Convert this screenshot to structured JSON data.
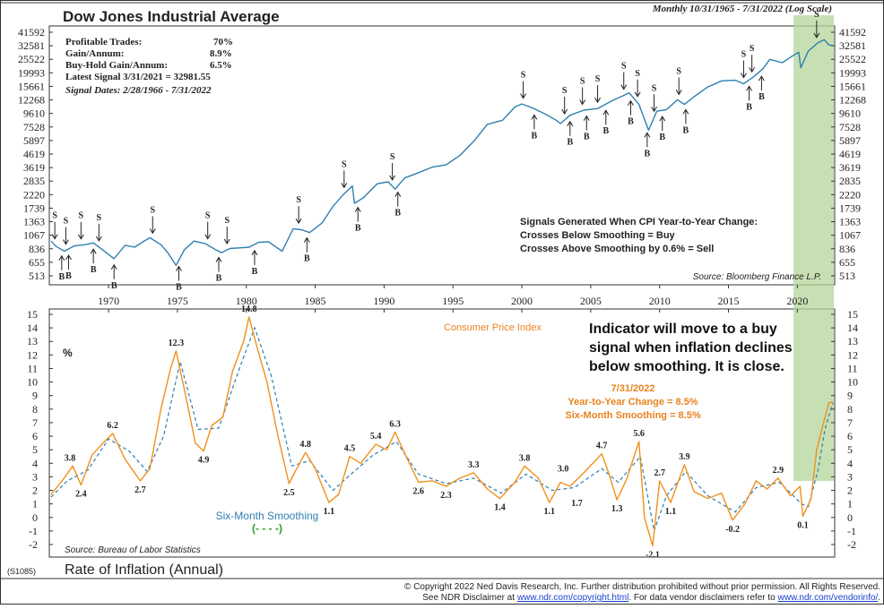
{
  "header": {
    "title": "Dow Jones Industrial Average",
    "subtitle": "Monthly 10/31/1965 - 7/31/2022 (Log Scale)"
  },
  "stats": {
    "profitable_trades_label": "Profitable Trades:",
    "profitable_trades_value": "70%",
    "gain_label": "Gain/Annum:",
    "gain_value": "8.9%",
    "buyhold_label": "Buy-Hold Gain/Annum:",
    "buyhold_value": "6.5%",
    "latest_signal": "Latest Signal 3/31/2021 = 32981.55",
    "signal_dates": "Signal Dates: 2/28/1966 - 7/31/2022"
  },
  "signals_note": {
    "line1": "Signals Generated When CPI Year-to-Year Change:",
    "line2": "Crosses Below Smoothing = Buy",
    "line3": "Crosses Above Smoothing by 0.6% = Sell"
  },
  "source_top": "Source: Bloomberg Finance L.P.",
  "source_bottom": "Source: Bureau of Labor Statistics",
  "cpi_label": "Consumer Price Index",
  "callout": {
    "line1": "Indicator will move to a buy",
    "line2": "signal when inflation declines",
    "line3": "below smoothing. It is close."
  },
  "latest_cpi": {
    "date": "7/31/2022",
    "yoy": "Year-to-Year Change = 8.5%",
    "smooth": "Six-Month Smoothing = 8.5%"
  },
  "smoothing_label": "Six-Month Smoothing",
  "smoothing_legend": "(- - - -)",
  "percent_label": "%",
  "bottom_title": "Rate of Inflation (Annual)",
  "chart_code": "(S1085)",
  "footer": {
    "line1": "© Copyright 2022 Ned Davis Research, Inc.  Further distribution prohibited without prior permission.  All Rights Reserved.",
    "line2_a": "See NDR Disclaimer at ",
    "line2_link1": "www.ndr.com/copyright.html",
    "line2_b": ". For data vendor disclaimers refer to ",
    "line2_link2": "www.ndr.com/vendorinfo/",
    "line2_c": "."
  },
  "colors": {
    "dow_line": "#2f7fb0",
    "cpi_line": "#f0901e",
    "smoothing_line": "#2f7fb0",
    "highlight": "#b4d59a",
    "callout_text": "#111111",
    "orange_text": "#e8821e"
  },
  "chart_data": [
    {
      "type": "line",
      "title": "Dow Jones Industrial Average",
      "scale": "log",
      "ylim": [
        500,
        45000
      ],
      "y_ticks": [
        513,
        655,
        836,
        1067,
        1363,
        1739,
        2220,
        2835,
        3619,
        4619,
        5897,
        7528,
        9610,
        12268,
        15661,
        19993,
        25522,
        32581,
        41592
      ],
      "x_ticks": [
        1970,
        1975,
        1980,
        1985,
        1990,
        1995,
        2000,
        2005,
        2010,
        2015,
        2020
      ],
      "xlim": [
        1965.83,
        2022.58
      ],
      "series": [
        {
          "x": [
            1965.83,
            1966.2,
            1966.8,
            1967.5,
            1968.3,
            1968.9,
            1969.5,
            1970.4,
            1971.2,
            1971.9,
            1972.5,
            1973.0,
            1973.8,
            1974.3,
            1974.9,
            1975.5,
            1976.2,
            1977.0,
            1977.8,
            1978.2,
            1978.8,
            1979.5,
            1980.2,
            1980.9,
            1981.6,
            1982.6,
            1983.4,
            1984.0,
            1984.6,
            1985.5,
            1986.3,
            1987.0,
            1987.7,
            1987.85,
            1988.5,
            1989.5,
            1990.3,
            1990.8,
            1991.5,
            1992.5,
            1993.5,
            1994.5,
            1995.5,
            1996.5,
            1997.5,
            1998.6,
            1999.5,
            2000.0,
            2000.8,
            2001.7,
            2002.5,
            2002.8,
            2003.5,
            2004.5,
            2005.5,
            2006.5,
            2007.8,
            2008.5,
            2009.2,
            2009.8,
            2010.5,
            2011.3,
            2011.8,
            2012.5,
            2013.5,
            2014.5,
            2015.5,
            2016.1,
            2016.8,
            2017.5,
            2018.0,
            2018.9,
            2019.5,
            2020.1,
            2020.25,
            2020.8,
            2021.5,
            2021.95,
            2022.3,
            2022.58
          ],
          "values": [
            960,
            870,
            800,
            880,
            900,
            930,
            830,
            700,
            890,
            860,
            950,
            1020,
            900,
            780,
            620,
            820,
            960,
            920,
            820,
            780,
            840,
            850,
            860,
            940,
            950,
            800,
            1200,
            1180,
            1120,
            1330,
            1800,
            2200,
            2600,
            1900,
            2100,
            2700,
            2800,
            2450,
            3000,
            3300,
            3650,
            3800,
            4500,
            5800,
            7900,
            8500,
            10800,
            11400,
            10600,
            9500,
            8500,
            8000,
            9300,
            10200,
            10500,
            12000,
            13900,
            11300,
            7100,
            10000,
            10300,
            12300,
            11300,
            13000,
            15500,
            17300,
            17500,
            16400,
            18500,
            21500,
            25500,
            24000,
            26500,
            29000,
            21900,
            29600,
            34500,
            36300,
            33000,
            32800
          ]
        }
      ],
      "signals": [
        {
          "type": "S",
          "x": 1966.1
        },
        {
          "type": "B",
          "x": 1966.6
        },
        {
          "type": "S",
          "x": 1966.9
        },
        {
          "type": "B",
          "x": 1967.1
        },
        {
          "type": "S",
          "x": 1968.0
        },
        {
          "type": "B",
          "x": 1968.9
        },
        {
          "type": "S",
          "x": 1969.3
        },
        {
          "type": "B",
          "x": 1970.4
        },
        {
          "type": "S",
          "x": 1973.2
        },
        {
          "type": "B",
          "x": 1975.1
        },
        {
          "type": "S",
          "x": 1977.2
        },
        {
          "type": "B",
          "x": 1978.0
        },
        {
          "type": "S",
          "x": 1978.6
        },
        {
          "type": "B",
          "x": 1980.6
        },
        {
          "type": "S",
          "x": 1983.8
        },
        {
          "type": "B",
          "x": 1984.4
        },
        {
          "type": "S",
          "x": 1987.1
        },
        {
          "type": "B",
          "x": 1988.1
        },
        {
          "type": "S",
          "x": 1990.6
        },
        {
          "type": "B",
          "x": 1991.0
        },
        {
          "type": "S",
          "x": 2000.1
        },
        {
          "type": "B",
          "x": 2000.9
        },
        {
          "type": "S",
          "x": 2003.1
        },
        {
          "type": "B",
          "x": 2003.5
        },
        {
          "type": "S",
          "x": 2004.4
        },
        {
          "type": "B",
          "x": 2004.7
        },
        {
          "type": "S",
          "x": 2005.5
        },
        {
          "type": "B",
          "x": 2006.1
        },
        {
          "type": "S",
          "x": 2007.4
        },
        {
          "type": "B",
          "x": 2007.9
        },
        {
          "type": "S",
          "x": 2008.4
        },
        {
          "type": "B",
          "x": 2009.1
        },
        {
          "type": "S",
          "x": 2009.6
        },
        {
          "type": "B",
          "x": 2010.2
        },
        {
          "type": "S",
          "x": 2011.4
        },
        {
          "type": "B",
          "x": 2011.9
        },
        {
          "type": "S",
          "x": 2016.1
        },
        {
          "type": "B",
          "x": 2016.5
        },
        {
          "type": "S",
          "x": 2016.7
        },
        {
          "type": "B",
          "x": 2017.4
        },
        {
          "type": "S",
          "x": 2021.4
        }
      ]
    },
    {
      "type": "line",
      "title": "Rate of Inflation (Annual)",
      "ylabel": "%",
      "ylim": [
        -2,
        15
      ],
      "y_ticks": [
        -2,
        -1,
        0,
        1,
        2,
        3,
        4,
        5,
        6,
        7,
        8,
        9,
        10,
        11,
        12,
        13,
        14,
        15
      ],
      "x_ticks": [
        1970,
        1975,
        1980,
        1985,
        1990,
        1995,
        2000,
        2005,
        2010,
        2015,
        2020
      ],
      "xlim": [
        1965.83,
        2022.58
      ],
      "series": [
        {
          "name": "Consumer Price Index",
          "x": [
            1965.83,
            1966.7,
            1967.4,
            1968.0,
            1968.8,
            1969.6,
            1970.3,
            1971.2,
            1972.3,
            1973.0,
            1973.8,
            1974.5,
            1974.9,
            1975.6,
            1976.3,
            1976.9,
            1977.5,
            1978.3,
            1979.0,
            1979.8,
            1980.2,
            1980.8,
            1981.5,
            1982.3,
            1983.1,
            1983.6,
            1984.3,
            1985.0,
            1986.0,
            1986.7,
            1987.5,
            1988.3,
            1989.4,
            1990.2,
            1990.8,
            1991.6,
            1992.5,
            1993.5,
            1994.5,
            1995.5,
            1996.5,
            1997.5,
            1998.4,
            1999.5,
            2000.2,
            2001.2,
            2002.0,
            2002.8,
            2003.5,
            2004.5,
            2005.8,
            2006.3,
            2006.9,
            2007.6,
            2008.5,
            2008.9,
            2009.5,
            2010.0,
            2010.8,
            2011.8,
            2012.5,
            2013.5,
            2014.5,
            2015.3,
            2016.2,
            2017.0,
            2017.8,
            2018.6,
            2019.5,
            2020.2,
            2020.4,
            2021.0,
            2021.4,
            2021.9,
            2022.3,
            2022.58
          ],
          "values": [
            1.7,
            2.8,
            3.8,
            2.4,
            4.6,
            5.5,
            6.2,
            4.3,
            2.7,
            3.6,
            8.0,
            11.0,
            12.3,
            9.0,
            5.5,
            4.9,
            6.8,
            7.4,
            10.8,
            13.0,
            14.8,
            12.5,
            10.0,
            6.0,
            2.5,
            3.5,
            4.8,
            3.6,
            1.1,
            1.7,
            4.5,
            4.0,
            5.4,
            5.0,
            6.3,
            4.5,
            2.6,
            2.7,
            2.3,
            2.9,
            3.3,
            2.1,
            1.4,
            2.6,
            3.8,
            2.9,
            1.1,
            2.6,
            2.3,
            3.3,
            4.7,
            3.3,
            1.3,
            2.8,
            5.6,
            0.0,
            -2.1,
            2.7,
            1.1,
            3.9,
            1.9,
            1.4,
            1.8,
            -0.2,
            1.0,
            2.7,
            2.1,
            2.9,
            1.6,
            2.3,
            0.1,
            1.4,
            5.0,
            7.0,
            8.5,
            8.5
          ]
        },
        {
          "name": "Six-Month Smoothing",
          "x": [
            1965.83,
            1967.0,
            1968.5,
            1970.0,
            1971.5,
            1972.8,
            1974.0,
            1975.2,
            1976.5,
            1978.0,
            1979.5,
            1980.6,
            1981.8,
            1983.3,
            1984.6,
            1986.3,
            1987.6,
            1989.2,
            1990.9,
            1992.5,
            1994.5,
            1996.5,
            1998.5,
            2000.3,
            2002.2,
            2003.8,
            2005.8,
            2007.0,
            2008.6,
            2009.6,
            2010.5,
            2011.9,
            2013.5,
            2015.5,
            2017.0,
            2018.7,
            2020.3,
            2020.8,
            2021.5,
            2022.0,
            2022.58
          ],
          "values": [
            1.5,
            2.7,
            3.5,
            5.8,
            4.9,
            3.4,
            6.0,
            11.5,
            6.5,
            6.6,
            11.0,
            14.0,
            10.5,
            3.8,
            4.2,
            2.0,
            3.2,
            4.6,
            5.6,
            3.2,
            2.5,
            2.9,
            1.8,
            3.2,
            2.0,
            2.2,
            3.6,
            2.6,
            4.5,
            -1.0,
            1.6,
            3.4,
            1.6,
            0.4,
            2.2,
            2.6,
            1.0,
            0.8,
            3.5,
            6.5,
            8.5
          ]
        }
      ],
      "annotations": [
        {
          "x": 1967.2,
          "label": "3.8"
        },
        {
          "x": 1968.0,
          "label": "2.4"
        },
        {
          "x": 1970.3,
          "label": "6.2"
        },
        {
          "x": 1972.3,
          "label": "2.7"
        },
        {
          "x": 1974.9,
          "label": "12.3"
        },
        {
          "x": 1976.9,
          "label": "4.9"
        },
        {
          "x": 1980.2,
          "label": "14.8"
        },
        {
          "x": 1983.1,
          "label": "2.5"
        },
        {
          "x": 1984.3,
          "label": "4.8"
        },
        {
          "x": 1986.0,
          "label": "1.1"
        },
        {
          "x": 1987.5,
          "label": "4.5"
        },
        {
          "x": 1989.4,
          "label": "5.4"
        },
        {
          "x": 1990.8,
          "label": "6.3"
        },
        {
          "x": 1992.5,
          "label": "2.6"
        },
        {
          "x": 1994.5,
          "label": "2.3"
        },
        {
          "x": 1996.5,
          "label": "3.3"
        },
        {
          "x": 1998.4,
          "label": "1.4"
        },
        {
          "x": 2000.2,
          "label": "3.8"
        },
        {
          "x": 2002.0,
          "label": "1.1"
        },
        {
          "x": 2003.0,
          "label": "3.0"
        },
        {
          "x": 2004.0,
          "label": "1.7"
        },
        {
          "x": 2005.8,
          "label": "4.7"
        },
        {
          "x": 2006.9,
          "label": "1.3"
        },
        {
          "x": 2008.5,
          "label": "5.6"
        },
        {
          "x": 2009.5,
          "label": "-2.1"
        },
        {
          "x": 2010.0,
          "label": "2.7"
        },
        {
          "x": 2010.8,
          "label": "1.1"
        },
        {
          "x": 2011.8,
          "label": "3.9"
        },
        {
          "x": 2015.3,
          "label": "-0.2"
        },
        {
          "x": 2018.6,
          "label": "2.9"
        },
        {
          "x": 2020.4,
          "label": "0.1"
        }
      ]
    }
  ]
}
